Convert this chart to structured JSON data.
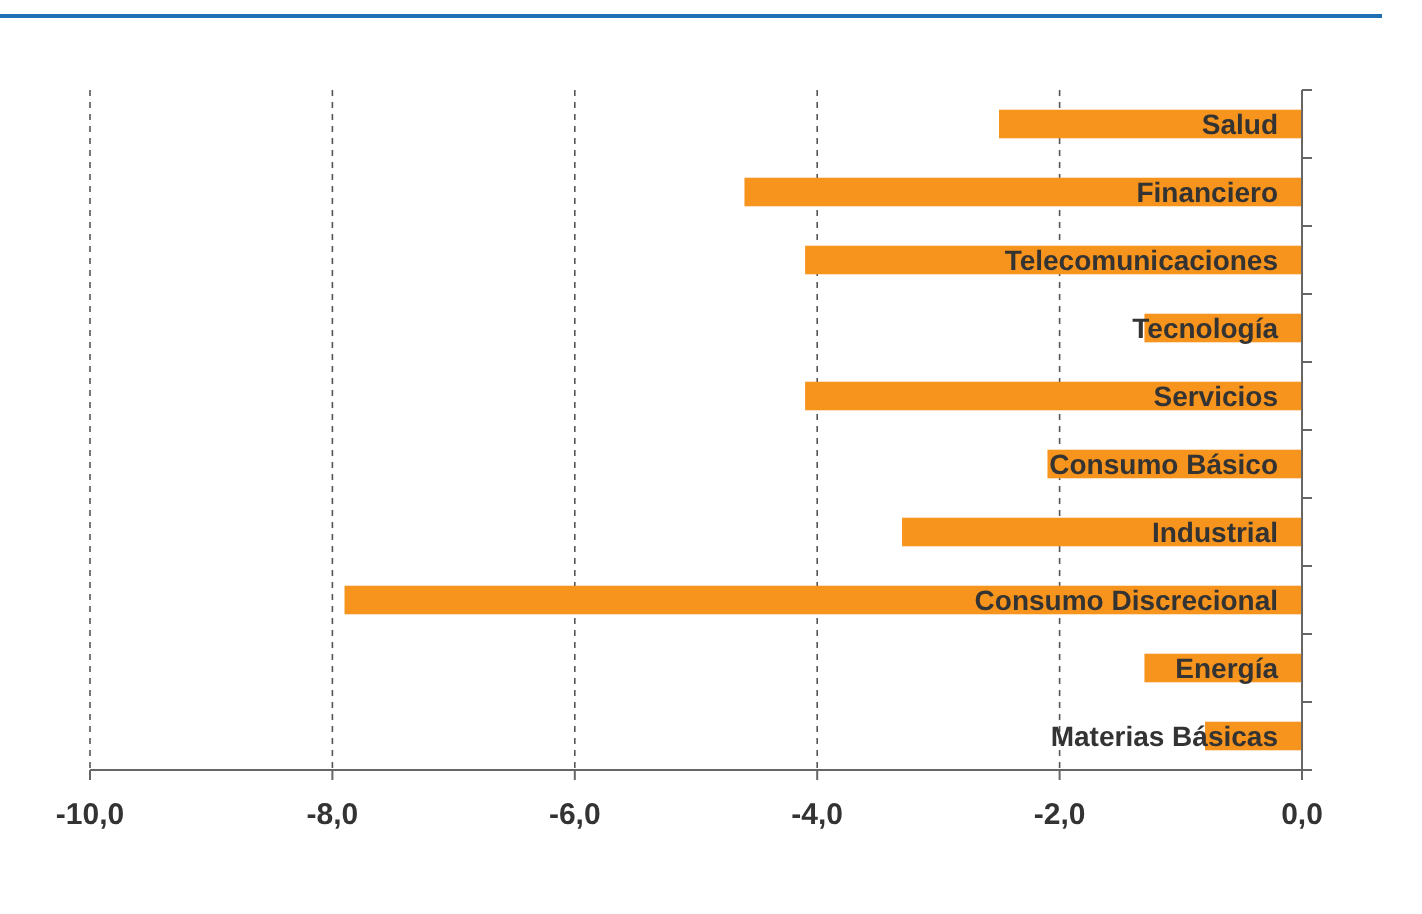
{
  "chart_data": {
    "type": "bar",
    "orientation": "horizontal",
    "categories": [
      "Salud",
      "Financiero",
      "Telecomunicaciones",
      "Tecnología",
      "Servicios",
      "Consumo Básico",
      "Industrial",
      "Consumo Discrecional",
      "Energía",
      "Materias Básicas"
    ],
    "values": [
      -2.5,
      -4.6,
      -4.1,
      -1.3,
      -4.1,
      -2.1,
      -3.3,
      -7.9,
      -1.3,
      -0.8
    ],
    "color": "#f7941d",
    "xlim": [
      -10,
      0
    ],
    "xticks": [
      {
        "value": -10,
        "label": "-10,0"
      },
      {
        "value": -8,
        "label": "-8,0"
      },
      {
        "value": -6,
        "label": "-6,0"
      },
      {
        "value": -4,
        "label": "-4,0"
      },
      {
        "value": -2,
        "label": "-2,0"
      },
      {
        "value": 0,
        "label": "0,0"
      }
    ],
    "grid": "x"
  }
}
